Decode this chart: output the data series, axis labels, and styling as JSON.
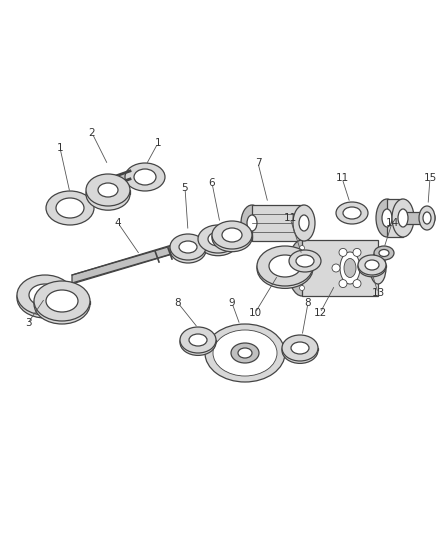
{
  "bg_color": "#ffffff",
  "lc": "#444444",
  "fc": "#d8d8d8",
  "fc2": "#c0c0c0",
  "dark": "#888888",
  "white": "#ffffff",
  "fig_w": 4.38,
  "fig_h": 5.33,
  "dpi": 100
}
